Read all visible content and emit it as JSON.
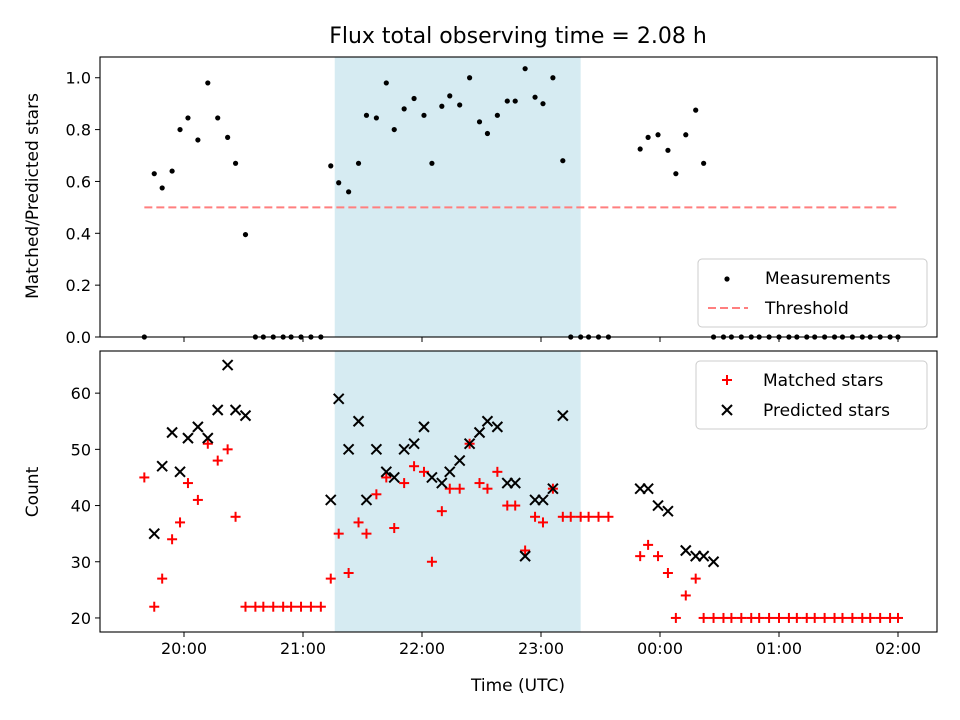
{
  "title": "Flux total observing time = 2.08 h",
  "colors": {
    "measurement": "#000000",
    "threshold": "#ff7f7f",
    "matched": "#ff0000",
    "predicted": "#000000",
    "highlight": "#add8e6"
  },
  "chart_data": [
    {
      "type": "scatter",
      "ylabel": "Matched/Predicted stars",
      "ylim": [
        0,
        1.08
      ],
      "yticks": [
        "0.0",
        "0.2",
        "0.4",
        "0.6",
        "0.8",
        "1.0"
      ],
      "highlight_span": [
        "21:16",
        "23:20"
      ],
      "legend": {
        "placement": "lower-right",
        "entries": [
          "Measurements",
          "Threshold"
        ]
      },
      "threshold": {
        "name": "Threshold",
        "value": 0.5,
        "x_range": [
          "19:40",
          "02:00"
        ]
      },
      "series": [
        {
          "name": "Measurements",
          "marker": "dot",
          "points": [
            [
              "19:40",
              0.0
            ],
            [
              "19:45",
              0.63
            ],
            [
              "19:49",
              0.575
            ],
            [
              "19:54",
              0.64
            ],
            [
              "19:58",
              0.8
            ],
            [
              "20:02",
              0.845
            ],
            [
              "20:07",
              0.76
            ],
            [
              "20:12",
              0.98
            ],
            [
              "20:17",
              0.845
            ],
            [
              "20:22",
              0.77
            ],
            [
              "20:26",
              0.67
            ],
            [
              "20:31",
              0.395
            ],
            [
              "20:36",
              0.0
            ],
            [
              "20:40",
              0.0
            ],
            [
              "20:45",
              0.0
            ],
            [
              "20:50",
              0.0
            ],
            [
              "20:54",
              0.0
            ],
            [
              "20:59",
              0.0
            ],
            [
              "21:04",
              0.0
            ],
            [
              "21:09",
              0.0
            ],
            [
              "21:14",
              0.66
            ],
            [
              "21:18",
              0.595
            ],
            [
              "21:23",
              0.56
            ],
            [
              "21:28",
              0.67
            ],
            [
              "21:32",
              0.855
            ],
            [
              "21:37",
              0.845
            ],
            [
              "21:42",
              0.98
            ],
            [
              "21:46",
              0.8
            ],
            [
              "21:51",
              0.88
            ],
            [
              "21:56",
              0.92
            ],
            [
              "22:01",
              0.855
            ],
            [
              "22:05",
              0.67
            ],
            [
              "22:10",
              0.89
            ],
            [
              "22:14",
              0.93
            ],
            [
              "22:19",
              0.895
            ],
            [
              "22:24",
              1.0
            ],
            [
              "22:29",
              0.83
            ],
            [
              "22:33",
              0.785
            ],
            [
              "22:38",
              0.855
            ],
            [
              "22:43",
              0.91
            ],
            [
              "22:47",
              0.91
            ],
            [
              "22:52",
              1.035
            ],
            [
              "22:57",
              0.925
            ],
            [
              "23:01",
              0.9
            ],
            [
              "23:06",
              1.0
            ],
            [
              "23:11",
              0.68
            ],
            [
              "23:15",
              0.0
            ],
            [
              "23:20",
              0.0
            ],
            [
              "23:24",
              0.0
            ],
            [
              "23:29",
              0.0
            ],
            [
              "23:34",
              0.0
            ],
            [
              "23:50",
              0.725
            ],
            [
              "23:54",
              0.77
            ],
            [
              "23:59",
              0.78
            ],
            [
              "00:04",
              0.72
            ],
            [
              "00:08",
              0.63
            ],
            [
              "00:13",
              0.78
            ],
            [
              "00:18",
              0.875
            ],
            [
              "00:22",
              0.67
            ],
            [
              "00:27",
              0.0
            ],
            [
              "00:32",
              0.0
            ],
            [
              "00:36",
              0.0
            ],
            [
              "00:41",
              0.0
            ],
            [
              "00:46",
              0.0
            ],
            [
              "00:50",
              0.0
            ],
            [
              "00:55",
              0.0
            ],
            [
              "01:00",
              0.0
            ],
            [
              "01:05",
              0.0
            ],
            [
              "01:09",
              0.0
            ],
            [
              "01:14",
              0.0
            ],
            [
              "01:18",
              0.0
            ],
            [
              "01:23",
              0.0
            ],
            [
              "01:28",
              0.0
            ],
            [
              "01:32",
              0.0
            ],
            [
              "01:37",
              0.0
            ],
            [
              "01:42",
              0.0
            ],
            [
              "01:46",
              0.0
            ],
            [
              "01:51",
              0.0
            ],
            [
              "01:56",
              0.0
            ],
            [
              "02:00",
              0.0
            ]
          ]
        }
      ]
    },
    {
      "type": "scatter",
      "xlabel": "Time (UTC)",
      "ylabel": "Count",
      "ylim": [
        17.5,
        67.5
      ],
      "yticks": [
        "20",
        "30",
        "40",
        "50",
        "60"
      ],
      "xticks": [
        "20:00",
        "21:00",
        "22:00",
        "23:00",
        "00:00",
        "01:00",
        "02:00"
      ],
      "highlight_span": [
        "21:16",
        "23:20"
      ],
      "legend": {
        "placement": "top-right",
        "entries": [
          "Matched stars",
          "Predicted stars"
        ]
      },
      "series": [
        {
          "name": "Matched stars",
          "marker": "plus",
          "points": [
            [
              "19:40",
              45
            ],
            [
              "19:45",
              22
            ],
            [
              "19:49",
              27
            ],
            [
              "19:54",
              34
            ],
            [
              "19:58",
              37
            ],
            [
              "20:02",
              44
            ],
            [
              "20:07",
              41
            ],
            [
              "20:12",
              51
            ],
            [
              "20:17",
              48
            ],
            [
              "20:22",
              50
            ],
            [
              "20:26",
              38
            ],
            [
              "20:31",
              22
            ],
            [
              "20:36",
              22
            ],
            [
              "20:40",
              22
            ],
            [
              "20:45",
              22
            ],
            [
              "20:50",
              22
            ],
            [
              "20:54",
              22
            ],
            [
              "20:59",
              22
            ],
            [
              "21:04",
              22
            ],
            [
              "21:09",
              22
            ],
            [
              "21:14",
              27
            ],
            [
              "21:18",
              35
            ],
            [
              "21:23",
              28
            ],
            [
              "21:28",
              37
            ],
            [
              "21:32",
              35
            ],
            [
              "21:37",
              42
            ],
            [
              "21:42",
              45
            ],
            [
              "21:46",
              36
            ],
            [
              "21:51",
              44
            ],
            [
              "21:56",
              47
            ],
            [
              "22:01",
              46
            ],
            [
              "22:05",
              30
            ],
            [
              "22:10",
              39
            ],
            [
              "22:14",
              43
            ],
            [
              "22:19",
              43
            ],
            [
              "22:24",
              51
            ],
            [
              "22:29",
              44
            ],
            [
              "22:33",
              43
            ],
            [
              "22:38",
              46
            ],
            [
              "22:43",
              40
            ],
            [
              "22:47",
              40
            ],
            [
              "22:52",
              32
            ],
            [
              "22:57",
              38
            ],
            [
              "23:01",
              37
            ],
            [
              "23:06",
              43
            ],
            [
              "23:11",
              38
            ],
            [
              "23:15",
              38
            ],
            [
              "23:20",
              38
            ],
            [
              "23:24",
              38
            ],
            [
              "23:29",
              38
            ],
            [
              "23:34",
              38
            ],
            [
              "23:50",
              31
            ],
            [
              "23:54",
              33
            ],
            [
              "23:59",
              31
            ],
            [
              "00:04",
              28
            ],
            [
              "00:08",
              20
            ],
            [
              "00:13",
              24
            ],
            [
              "00:18",
              27
            ],
            [
              "00:22",
              20
            ],
            [
              "00:27",
              20
            ],
            [
              "00:32",
              20
            ],
            [
              "00:36",
              20
            ],
            [
              "00:41",
              20
            ],
            [
              "00:46",
              20
            ],
            [
              "00:50",
              20
            ],
            [
              "00:55",
              20
            ],
            [
              "01:00",
              20
            ],
            [
              "01:05",
              20
            ],
            [
              "01:09",
              20
            ],
            [
              "01:14",
              20
            ],
            [
              "01:18",
              20
            ],
            [
              "01:23",
              20
            ],
            [
              "01:28",
              20
            ],
            [
              "01:32",
              20
            ],
            [
              "01:37",
              20
            ],
            [
              "01:42",
              20
            ],
            [
              "01:46",
              20
            ],
            [
              "01:51",
              20
            ],
            [
              "01:56",
              20
            ],
            [
              "02:00",
              20
            ]
          ]
        },
        {
          "name": "Predicted stars",
          "marker": "x",
          "points": [
            [
              "19:45",
              35
            ],
            [
              "19:49",
              47
            ],
            [
              "19:54",
              53
            ],
            [
              "19:58",
              46
            ],
            [
              "20:02",
              52
            ],
            [
              "20:07",
              54
            ],
            [
              "20:12",
              52
            ],
            [
              "20:17",
              57
            ],
            [
              "20:22",
              65
            ],
            [
              "20:26",
              57
            ],
            [
              "20:31",
              56
            ],
            [
              "21:14",
              41
            ],
            [
              "21:18",
              59
            ],
            [
              "21:23",
              50
            ],
            [
              "21:28",
              55
            ],
            [
              "21:32",
              41
            ],
            [
              "21:37",
              50
            ],
            [
              "21:42",
              46
            ],
            [
              "21:46",
              45
            ],
            [
              "21:51",
              50
            ],
            [
              "21:56",
              51
            ],
            [
              "22:01",
              54
            ],
            [
              "22:05",
              45
            ],
            [
              "22:10",
              44
            ],
            [
              "22:14",
              46
            ],
            [
              "22:19",
              48
            ],
            [
              "22:24",
              51
            ],
            [
              "22:29",
              53
            ],
            [
              "22:33",
              55
            ],
            [
              "22:38",
              54
            ],
            [
              "22:43",
              44
            ],
            [
              "22:47",
              44
            ],
            [
              "22:52",
              31
            ],
            [
              "22:57",
              41
            ],
            [
              "23:01",
              41
            ],
            [
              "23:06",
              43
            ],
            [
              "23:11",
              56
            ],
            [
              "23:50",
              43
            ],
            [
              "23:54",
              43
            ],
            [
              "23:59",
              40
            ],
            [
              "00:04",
              39
            ],
            [
              "00:13",
              32
            ],
            [
              "00:18",
              31
            ],
            [
              "00:22",
              31
            ],
            [
              "00:27",
              30
            ]
          ]
        }
      ]
    }
  ]
}
